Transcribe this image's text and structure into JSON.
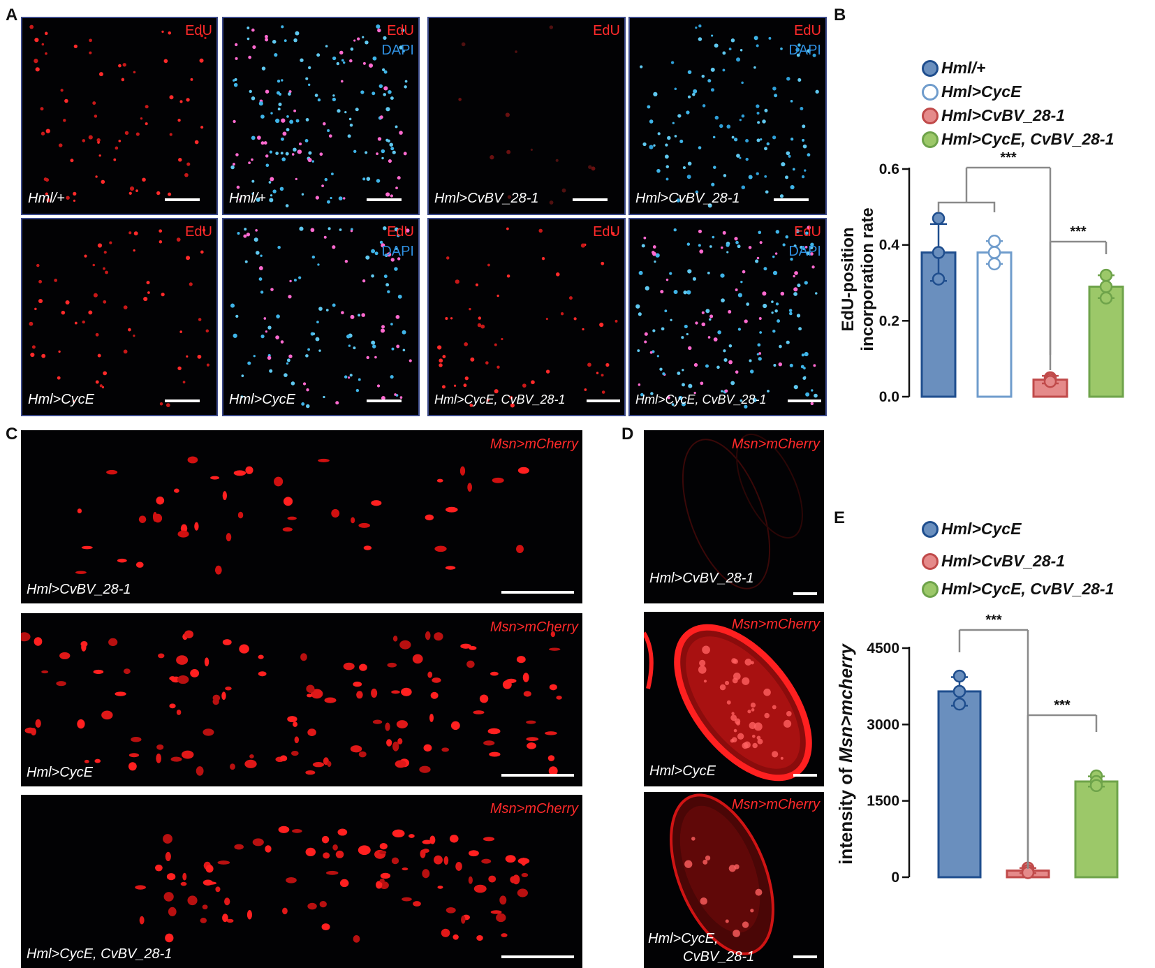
{
  "panels": {
    "A": {
      "letter": "A",
      "tiles": [
        {
          "channels": [
            "EdU"
          ],
          "genotype": "Hml/+"
        },
        {
          "channels": [
            "EdU",
            "DAPI"
          ],
          "genotype": "Hml/+"
        },
        {
          "channels": [
            "EdU"
          ],
          "genotype": "Hml>CvBV_28-1"
        },
        {
          "channels": [
            "EdU",
            "DAPI"
          ],
          "genotype": "Hml>CvBV_28-1"
        },
        {
          "channels": [
            "EdU"
          ],
          "genotype": "Hml>CycE"
        },
        {
          "channels": [
            "EdU",
            "DAPI"
          ],
          "genotype": "Hml>CycE"
        },
        {
          "channels": [
            "EdU"
          ],
          "genotype": "Hml>CycE, CvBV_28-1"
        },
        {
          "channels": [
            "EdU",
            "DAPI"
          ],
          "genotype": "Hml>CycE, CvBV_28-1"
        }
      ],
      "colors": {
        "edu": "#ff2a2a",
        "dapi": "#2f8fe0"
      }
    },
    "B": {
      "letter": "B",
      "legend": [
        "Hml/+",
        "Hml>CycE",
        "Hml>CvBV_28-1",
        "Hml>CycE, CvBV_28-1"
      ],
      "ylabel_line1": "EdU-position",
      "ylabel_line2": "incorporation rate",
      "ticks": [
        "0.0",
        "0.2",
        "0.4",
        "0.6"
      ],
      "sig1": "***",
      "sig2": "***"
    },
    "C": {
      "letter": "C",
      "tiles": [
        {
          "channel": "Msn>mCherry",
          "genotype": "Hml>CvBV_28-1"
        },
        {
          "channel": "Msn>mCherry",
          "genotype": "Hml>CycE"
        },
        {
          "channel": "Msn>mCherry",
          "genotype": "Hml>CycE, CvBV_28-1"
        }
      ]
    },
    "D": {
      "letter": "D",
      "tiles": [
        {
          "channel": "Msn>mCherry",
          "genotype": "Hml>CvBV_28-1",
          "genotype2": ""
        },
        {
          "channel": "Msn>mCherry",
          "genotype": "Hml>CycE",
          "genotype2": ""
        },
        {
          "channel": "Msn>mCherry",
          "genotype": "Hml>CycE,",
          "genotype2": "CvBV_28-1"
        }
      ]
    },
    "E": {
      "letter": "E",
      "legend": [
        "Hml>CycE",
        "Hml>CvBV_28-1",
        "Hml>CycE, CvBV_28-1"
      ],
      "ylabel_prefix": "intensity of ",
      "ylabel_italic": "Msn>mcherry",
      "ticks": [
        "0",
        "1500",
        "3000",
        "4500"
      ],
      "sig1": "***",
      "sig2": "***"
    }
  },
  "chart_data": [
    {
      "type": "bar",
      "panel": "B",
      "categories": [
        "Hml/+",
        "Hml>CycE",
        "Hml>CvBV_28-1",
        "Hml>CycE, CvBV_28-1"
      ],
      "values": [
        0.38,
        0.38,
        0.045,
        0.29
      ],
      "errors": [
        0.075,
        0.03,
        0.01,
        0.03
      ],
      "points": [
        [
          0.47,
          0.38,
          0.31
        ],
        [
          0.41,
          0.38,
          0.35
        ],
        [
          0.05,
          0.045,
          0.04
        ],
        [
          0.32,
          0.29,
          0.26
        ]
      ],
      "fills": [
        "#6a8fbe",
        "#ffffff",
        "#e58a8a",
        "#9cc869"
      ],
      "strokes": [
        "#1f4e8e",
        "#6f9ccc",
        "#c04a4a",
        "#6ea34a"
      ],
      "ylabel": "EdU-position incorporation rate",
      "ylim": [
        0,
        0.6
      ],
      "yticks": [
        0.0,
        0.2,
        0.4,
        0.6
      ],
      "grid": false,
      "legend_position": "top",
      "significance": [
        {
          "from": [
            0,
            1
          ],
          "to": 2,
          "label": "***"
        },
        {
          "from": [
            2
          ],
          "to": 3,
          "label": "***"
        }
      ]
    },
    {
      "type": "bar",
      "panel": "E",
      "categories": [
        "Hml>CycE",
        "Hml>CvBV_28-1",
        "Hml>CycE, CvBV_28-1"
      ],
      "values": [
        3650,
        130,
        1880
      ],
      "errors": [
        280,
        50,
        100
      ],
      "points": [
        [
          3950,
          3650,
          3400
        ],
        [
          180,
          130,
          90
        ],
        [
          1990,
          1880,
          1800
        ]
      ],
      "fills": [
        "#6a8fbe",
        "#e58a8a",
        "#9cc869"
      ],
      "strokes": [
        "#1f4e8e",
        "#c04a4a",
        "#6ea34a"
      ],
      "ylabel": "intensity of Msn>mcherry",
      "ylim": [
        0,
        4500
      ],
      "yticks": [
        0,
        1500,
        3000,
        4500
      ],
      "grid": false,
      "legend_position": "top",
      "significance": [
        {
          "from": [
            0
          ],
          "to": 1,
          "label": "***"
        },
        {
          "from": [
            1
          ],
          "to": 2,
          "label": "***"
        }
      ]
    }
  ]
}
